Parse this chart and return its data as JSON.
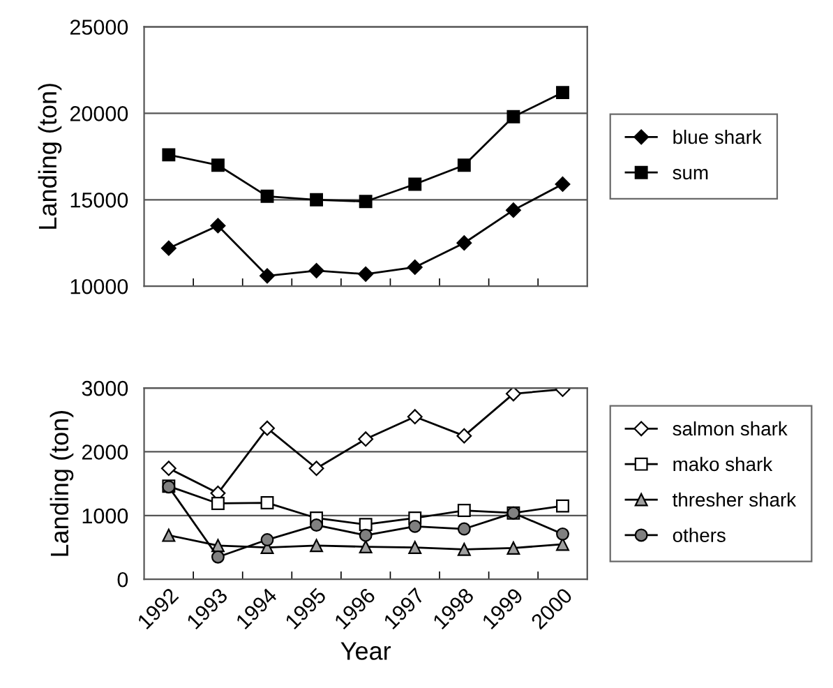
{
  "chart_data": [
    {
      "type": "line",
      "ylabel": "Landing (ton)",
      "categories": [
        "1992",
        "1993",
        "1994",
        "1995",
        "1996",
        "1997",
        "1998",
        "1999",
        "2000"
      ],
      "ylim": [
        10000,
        25000
      ],
      "yticks": [
        10000,
        15000,
        20000,
        25000
      ],
      "grid": "y",
      "legend": "right",
      "tick_labels": "y",
      "series": [
        {
          "name": "blue shark",
          "color": "#000000",
          "marker": "diamond",
          "values": [
            12200,
            13500,
            10600,
            10900,
            10700,
            11100,
            12500,
            14400,
            15900
          ]
        },
        {
          "name": "sum",
          "color": "#000000",
          "marker": "square",
          "values": [
            17600,
            17000,
            15200,
            15000,
            14900,
            15900,
            17000,
            19800,
            21200
          ]
        }
      ]
    },
    {
      "type": "line",
      "xlabel": "Year",
      "ylabel": "Landing (ton)",
      "categories": [
        "1992",
        "1993",
        "1994",
        "1995",
        "1996",
        "1997",
        "1998",
        "1999",
        "2000"
      ],
      "ylim": [
        0,
        3000
      ],
      "yticks": [
        0,
        1000,
        2000,
        3000
      ],
      "grid": "y",
      "legend": "right",
      "series": [
        {
          "name": "salmon shark",
          "color": "#ffffff",
          "marker": "diamond",
          "values": [
            1740,
            1350,
            2370,
            1740,
            2200,
            2550,
            2250,
            2910,
            2980
          ]
        },
        {
          "name": "mako shark",
          "color": "#ffffff",
          "marker": "square",
          "values": [
            1460,
            1190,
            1200,
            960,
            860,
            960,
            1080,
            1040,
            1150
          ]
        },
        {
          "name": "thresher shark",
          "color": "#a0a0a0",
          "marker": "triangle",
          "values": [
            690,
            530,
            500,
            530,
            510,
            500,
            470,
            490,
            550
          ]
        },
        {
          "name": "others",
          "color": "#808080",
          "marker": "circle",
          "values": [
            1450,
            350,
            620,
            850,
            690,
            830,
            790,
            1040,
            710
          ]
        }
      ]
    }
  ]
}
